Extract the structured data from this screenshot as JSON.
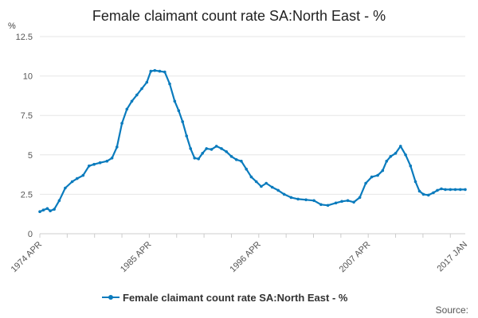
{
  "chart_data": {
    "type": "line",
    "title": "Female claimant count rate SA:North East - %",
    "yunit": "%",
    "xlabel": "",
    "ylabel": "",
    "ylim": [
      0,
      12.5
    ],
    "yticks": [
      "0",
      "2.5",
      "5",
      "7.5",
      "10",
      "12.5"
    ],
    "xlim": [
      1974.25,
      2017.0
    ],
    "xticks": [
      {
        "x": 1974.25,
        "label": "1974 APR"
      },
      {
        "x": 1985.25,
        "label": "1985 APR"
      },
      {
        "x": 1996.25,
        "label": "1996 APR"
      },
      {
        "x": 2007.25,
        "label": "2007 APR"
      },
      {
        "x": 2017.0,
        "label": "2017 JAN"
      }
    ],
    "grid": true,
    "legend": "bottom",
    "color": "#0a7bbd",
    "series": [
      {
        "name": "Female claimant count rate SA:North East - %",
        "x": [
          1974.25,
          1974.6,
          1975.0,
          1975.3,
          1975.7,
          1976.2,
          1976.8,
          1977.5,
          1978.0,
          1978.6,
          1979.2,
          1979.7,
          1980.3,
          1981.0,
          1981.5,
          1982.0,
          1982.5,
          1983.0,
          1983.5,
          1984.0,
          1984.5,
          1985.0,
          1985.4,
          1985.8,
          1986.3,
          1986.8,
          1987.3,
          1987.8,
          1988.2,
          1988.6,
          1989.0,
          1989.4,
          1989.8,
          1990.2,
          1990.6,
          1991.0,
          1991.5,
          1992.0,
          1992.5,
          1993.0,
          1993.5,
          1994.0,
          1994.5,
          1995.0,
          1995.5,
          1996.0,
          1996.5,
          1997.0,
          1997.6,
          1998.2,
          1998.8,
          1999.5,
          2000.2,
          2001.0,
          2001.8,
          2002.5,
          2003.2,
          2004.0,
          2004.6,
          2005.2,
          2005.8,
          2006.4,
          2007.0,
          2007.6,
          2008.2,
          2008.7,
          2009.1,
          2009.5,
          2010.0,
          2010.5,
          2011.0,
          2011.5,
          2012.0,
          2012.4,
          2012.8,
          2013.3,
          2013.8,
          2014.2,
          2014.6,
          2015.0,
          2015.5,
          2016.0,
          2016.5,
          2017.0
        ],
        "y": [
          1.4,
          1.5,
          1.6,
          1.45,
          1.55,
          2.1,
          2.9,
          3.3,
          3.5,
          3.7,
          4.3,
          4.4,
          4.5,
          4.6,
          4.8,
          5.5,
          7.0,
          7.9,
          8.4,
          8.8,
          9.2,
          9.6,
          10.3,
          10.35,
          10.3,
          10.25,
          9.5,
          8.4,
          7.8,
          7.1,
          6.2,
          5.4,
          4.8,
          4.75,
          5.1,
          5.4,
          5.35,
          5.55,
          5.4,
          5.2,
          4.9,
          4.7,
          4.6,
          4.1,
          3.6,
          3.3,
          3.0,
          3.2,
          2.95,
          2.75,
          2.5,
          2.3,
          2.2,
          2.15,
          2.1,
          1.85,
          1.8,
          1.95,
          2.05,
          2.1,
          2.0,
          2.3,
          3.2,
          3.6,
          3.7,
          4.0,
          4.6,
          4.9,
          5.1,
          5.55,
          5.0,
          4.3,
          3.3,
          2.7,
          2.5,
          2.45,
          2.6,
          2.75,
          2.85,
          2.8,
          2.8,
          2.8,
          2.8,
          2.8
        ]
      }
    ],
    "source_label": "Source:"
  }
}
